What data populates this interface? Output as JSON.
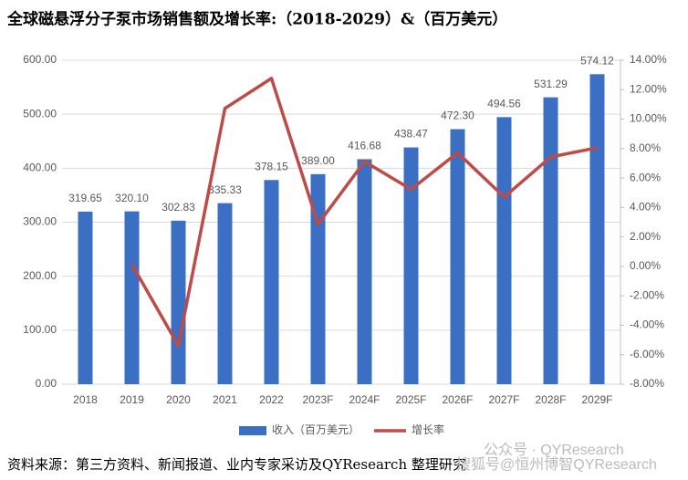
{
  "chart_data": {
    "type": "bar",
    "title": "全球磁悬浮分子泵市场销售额及增长率:（2018-2029）&（百万美元）",
    "categories": [
      "2018",
      "2019",
      "2020",
      "2021",
      "2022",
      "2023F",
      "2024F",
      "2025F",
      "2026F",
      "2027F",
      "2028F",
      "2029F"
    ],
    "series": [
      {
        "name": "收入（百万美元）",
        "color": "#3a6fc4",
        "values": [
          319.65,
          320.1,
          302.83,
          335.33,
          378.15,
          389,
          416.68,
          438.47,
          472.3,
          494.56,
          531.29,
          574.12
        ],
        "value_labels": [
          "319.65",
          "320.10",
          "302.83",
          "335.33",
          "378.15",
          "389.00",
          "416.68",
          "438.47",
          "472.30",
          "494.56",
          "531.29",
          "574.12"
        ]
      },
      {
        "name": "增长率",
        "color": "#be4b48",
        "type": "line",
        "axis": "y2",
        "values": [
          null,
          0.14,
          -5.39,
          10.73,
          12.77,
          2.87,
          7.12,
          5.23,
          7.72,
          4.71,
          7.43,
          8.06
        ]
      }
    ],
    "ylim": [
      0,
      600
    ],
    "yticks": [
      {
        "value": 0,
        "label": "0.00"
      },
      {
        "value": 100,
        "label": "100.00"
      },
      {
        "value": 200,
        "label": "200.00"
      },
      {
        "value": 300,
        "label": "300.00"
      },
      {
        "value": 400,
        "label": "400.00"
      },
      {
        "value": 500,
        "label": "500.00"
      },
      {
        "value": 600,
        "label": "600.00"
      }
    ],
    "y2lim": [
      -8,
      14
    ],
    "y2ticks": [
      {
        "value": -8,
        "label": "-8.00%"
      },
      {
        "value": -6,
        "label": "-6.00%"
      },
      {
        "value": -4,
        "label": "-4.00%"
      },
      {
        "value": -2,
        "label": "-2.00%"
      },
      {
        "value": 0,
        "label": "0.00%"
      },
      {
        "value": 2,
        "label": "2.00%"
      },
      {
        "value": 4,
        "label": "4.00%"
      },
      {
        "value": 6,
        "label": "6.00%"
      },
      {
        "value": 8,
        "label": "8.00%"
      },
      {
        "value": 10,
        "label": "10.00%"
      },
      {
        "value": 12,
        "label": "12.00%"
      },
      {
        "value": 14,
        "label": "14.00%"
      }
    ],
    "legend": "bottom"
  },
  "source": "资料来源：第三方资料、新闻报道、业内专家采访及QYResearch 整理研究",
  "watermark": [
    "公众号 · QYResearch",
    "搜狐号@恒州博智QYResearch"
  ]
}
